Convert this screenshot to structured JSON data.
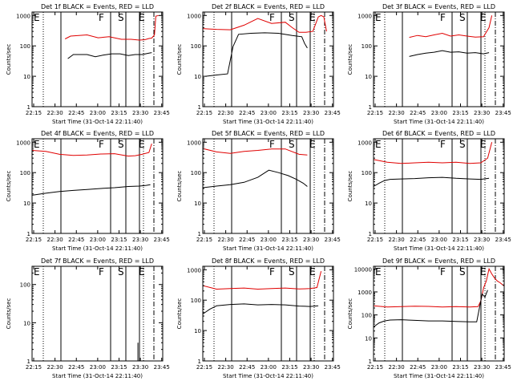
{
  "figure": {
    "xlabel": "Start Time (31-Oct-14 22:11:40)",
    "ylabel": "Counts/sec",
    "colors": {
      "events": "#000000",
      "lld": "#e00000",
      "axis": "#000000"
    }
  },
  "chart_data": [
    {
      "type": "line",
      "title": "Det 1f BLACK = Events, RED = LLD",
      "xticks": [
        "22:15",
        "22:30",
        "22:45",
        "23:00",
        "23:15",
        "23:30",
        "23:45"
      ],
      "yticks": [
        "1",
        "10",
        "100",
        "1000"
      ],
      "x_range_min": [
        0,
        95
      ],
      "y_range": [
        1,
        1300
      ],
      "markers": [
        "E",
        "F",
        "S",
        "E"
      ],
      "series": [
        {
          "name": "LLD",
          "color": "#e00000",
          "x": [
            24,
            28,
            40,
            48,
            56,
            65,
            72,
            78,
            82,
            85,
            87,
            89,
            90,
            92
          ],
          "values": [
            170,
            210,
            230,
            185,
            200,
            165,
            165,
            155,
            160,
            175,
            180,
            230,
            950,
            1000
          ]
        },
        {
          "name": "Events",
          "color": "#000000",
          "x": [
            26,
            30,
            40,
            46,
            52,
            58,
            64,
            70,
            75,
            80,
            85,
            87
          ],
          "values": [
            38,
            52,
            52,
            44,
            50,
            55,
            55,
            48,
            52,
            52,
            58,
            60
          ]
        }
      ]
    },
    {
      "type": "line",
      "title": "Det 2f BLACK = Events, RED = LLD",
      "xticks": [
        "22:15",
        "22:30",
        "22:45",
        "23:00",
        "23:15",
        "23:30",
        "23:45"
      ],
      "yticks": [
        "1",
        "10",
        "100",
        "1000"
      ],
      "x_range_min": [
        0,
        95
      ],
      "y_range": [
        1,
        1300
      ],
      "markers": [
        "F",
        "S",
        "E"
      ],
      "series": [
        {
          "name": "LLD",
          "color": "#e00000",
          "x": [
            0,
            10,
            20,
            30,
            40,
            50,
            60,
            65,
            70,
            75,
            80,
            84,
            86,
            88,
            90
          ],
          "values": [
            370,
            350,
            340,
            480,
            800,
            550,
            600,
            400,
            280,
            280,
            300,
            900,
            1000,
            900,
            300
          ]
        },
        {
          "name": "Events",
          "color": "#000000",
          "x": [
            2,
            10,
            18,
            22,
            26,
            35,
            45,
            55,
            65,
            72,
            74,
            76
          ],
          "values": [
            10,
            11,
            12,
            95,
            240,
            260,
            270,
            260,
            220,
            200,
            120,
            85
          ]
        }
      ]
    },
    {
      "type": "line",
      "title": "Det 3f BLACK = Events, RED = LLD",
      "xticks": [
        "22:15",
        "22:30",
        "22:45",
        "23:00",
        "23:15",
        "23:30",
        "23:45"
      ],
      "yticks": [
        "1",
        "10",
        "100",
        "1000"
      ],
      "x_range_min": [
        0,
        95
      ],
      "y_range": [
        1,
        1300
      ],
      "markers": [
        "E",
        "F",
        "S",
        "E"
      ],
      "series": [
        {
          "name": "LLD",
          "color": "#e00000",
          "x": [
            26,
            32,
            38,
            44,
            50,
            56,
            62,
            68,
            74,
            80,
            84,
            86
          ],
          "values": [
            190,
            220,
            200,
            230,
            260,
            210,
            230,
            210,
            195,
            200,
            400,
            1000
          ]
        },
        {
          "name": "Events",
          "color": "#000000",
          "x": [
            26,
            32,
            38,
            44,
            50,
            56,
            62,
            68,
            74,
            80,
            84
          ],
          "values": [
            45,
            52,
            58,
            62,
            70,
            62,
            64,
            58,
            60,
            55,
            60
          ]
        }
      ]
    },
    {
      "type": "line",
      "title": "Det 4f BLACK = Events, RED = LLD",
      "xticks": [
        "22:15",
        "22:30",
        "22:45",
        "23:00",
        "23:15",
        "23:30",
        "23:45"
      ],
      "yticks": [
        "1",
        "10",
        "100",
        "1000"
      ],
      "x_range_min": [
        0,
        95
      ],
      "y_range": [
        1,
        1300
      ],
      "markers": [
        "E",
        "F",
        "S",
        "E"
      ],
      "series": [
        {
          "name": "LLD",
          "color": "#e00000",
          "x": [
            0,
            10,
            20,
            30,
            40,
            50,
            60,
            70,
            75,
            80,
            85,
            87
          ],
          "values": [
            540,
            500,
            400,
            370,
            380,
            410,
            420,
            350,
            360,
            400,
            460,
            900
          ]
        },
        {
          "name": "Events",
          "color": "#000000",
          "x": [
            0,
            10,
            20,
            30,
            40,
            50,
            60,
            70,
            78,
            83,
            86
          ],
          "values": [
            18,
            21,
            24,
            26,
            28,
            30,
            32,
            35,
            36,
            38,
            40
          ]
        }
      ]
    },
    {
      "type": "line",
      "title": "Det 5f BLACK = Events, RED = LLD",
      "xticks": [
        "22:15",
        "22:30",
        "22:45",
        "23:00",
        "23:15",
        "23:30",
        "23:45"
      ],
      "yticks": [
        "1",
        "10",
        "100",
        "1000"
      ],
      "x_range_min": [
        0,
        95
      ],
      "y_range": [
        1,
        1300
      ],
      "markers": [
        "F",
        "S",
        "E"
      ],
      "series": [
        {
          "name": "LLD",
          "color": "#e00000",
          "x": [
            0,
            10,
            20,
            30,
            40,
            50,
            60,
            70,
            76
          ],
          "values": [
            620,
            480,
            430,
            500,
            540,
            600,
            600,
            400,
            380
          ]
        },
        {
          "name": "Events",
          "color": "#000000",
          "x": [
            0,
            10,
            20,
            30,
            40,
            48,
            55,
            62,
            68,
            73,
            76
          ],
          "values": [
            32,
            36,
            40,
            48,
            70,
            120,
            100,
            80,
            60,
            45,
            35
          ]
        }
      ]
    },
    {
      "type": "line",
      "title": "Det 6f BLACK = Events, RED = LLD",
      "xticks": [
        "22:15",
        "22:30",
        "22:45",
        "23:00",
        "23:15",
        "23:30",
        "23:45"
      ],
      "yticks": [
        "1",
        "10",
        "100",
        "1000"
      ],
      "x_range_min": [
        0,
        95
      ],
      "y_range": [
        1,
        1300
      ],
      "markers": [
        "E",
        "F",
        "S",
        "E"
      ],
      "series": [
        {
          "name": "LLD",
          "color": "#e00000",
          "x": [
            0,
            10,
            20,
            30,
            40,
            50,
            60,
            70,
            78,
            83,
            86
          ],
          "values": [
            270,
            220,
            200,
            210,
            220,
            210,
            220,
            200,
            210,
            300,
            1000
          ]
        },
        {
          "name": "Events",
          "color": "#000000",
          "x": [
            0,
            4,
            8,
            12,
            20,
            30,
            40,
            50,
            60,
            70,
            78,
            84
          ],
          "values": [
            35,
            45,
            55,
            60,
            62,
            64,
            68,
            70,
            65,
            62,
            60,
            65
          ]
        }
      ]
    },
    {
      "type": "line",
      "title": "Det 7f BLACK = Events, RED = LLD",
      "xticks": [
        "22:15",
        "22:30",
        "22:45",
        "23:00",
        "23:15",
        "23:30",
        "23:45"
      ],
      "yticks": [
        "1",
        "10",
        "100"
      ],
      "x_range_min": [
        0,
        95
      ],
      "y_range": [
        1,
        300
      ],
      "markers": [
        "E",
        "F",
        "S",
        "E"
      ],
      "series": [
        {
          "name": "Events",
          "color": "#000000",
          "x": [
            77,
            77,
            77
          ],
          "values": [
            1,
            3,
            1
          ]
        }
      ]
    },
    {
      "type": "line",
      "title": "Det 8f BLACK = Events, RED = LLD",
      "xticks": [
        "22:15",
        "22:30",
        "22:45",
        "23:00",
        "23:15",
        "23:30",
        "23:45"
      ],
      "yticks": [
        "1",
        "10",
        "100",
        "1000"
      ],
      "x_range_min": [
        0,
        95
      ],
      "y_range": [
        1,
        1300
      ],
      "markers": [
        "F",
        "S",
        "E"
      ],
      "series": [
        {
          "name": "LLD",
          "color": "#e00000",
          "x": [
            0,
            10,
            20,
            30,
            40,
            50,
            60,
            70,
            78,
            83,
            86
          ],
          "values": [
            300,
            230,
            240,
            250,
            230,
            240,
            250,
            235,
            240,
            260,
            900
          ]
        },
        {
          "name": "Events",
          "color": "#000000",
          "x": [
            0,
            5,
            10,
            20,
            30,
            40,
            50,
            60,
            70,
            78,
            84
          ],
          "values": [
            35,
            50,
            65,
            72,
            75,
            70,
            72,
            70,
            64,
            62,
            65
          ]
        }
      ]
    },
    {
      "type": "line",
      "title": "Det 9f BLACK = Events, RED = LLD",
      "xticks": [
        "22:15",
        "22:30",
        "22:45",
        "23:00",
        "23:15",
        "23:30",
        "23:45"
      ],
      "yticks": [
        "1",
        "10",
        "100",
        "1000",
        "10000"
      ],
      "x_range_min": [
        0,
        95
      ],
      "y_range": [
        1,
        13000
      ],
      "markers": [
        "E",
        "F",
        "S",
        "E"
      ],
      "series": [
        {
          "name": "LLD",
          "color": "#e00000",
          "x": [
            0,
            10,
            20,
            30,
            40,
            50,
            60,
            70,
            76,
            78,
            80,
            82,
            84,
            86,
            88,
            90,
            92,
            95
          ],
          "values": [
            250,
            220,
            230,
            240,
            235,
            220,
            230,
            220,
            230,
            400,
            1500,
            3000,
            10000,
            6000,
            4000,
            3000,
            2500,
            1800
          ]
        },
        {
          "name": "Events",
          "color": "#000000",
          "x": [
            0,
            4,
            8,
            12,
            20,
            30,
            40,
            50,
            60,
            70,
            75,
            77,
            79,
            81,
            83
          ],
          "values": [
            30,
            45,
            55,
            60,
            62,
            58,
            55,
            55,
            52,
            50,
            50,
            200,
            800,
            600,
            1200
          ]
        }
      ]
    }
  ]
}
